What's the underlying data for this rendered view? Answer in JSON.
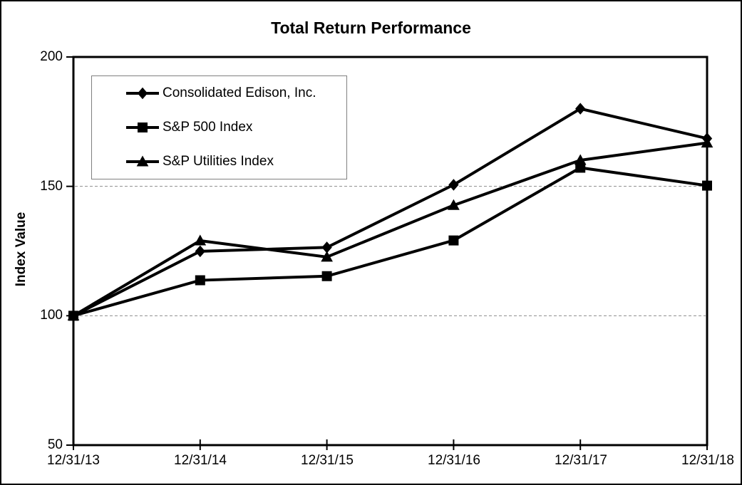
{
  "figure": {
    "background": "#ffffff",
    "outer_border_color": "#000000"
  },
  "chart_data": {
    "type": "line",
    "title": "Total Return Performance",
    "xlabel": "",
    "ylabel": "Index Value",
    "x_labels": [
      "12/31/13",
      "12/31/14",
      "12/31/15",
      "12/31/16",
      "12/31/17",
      "12/31/18"
    ],
    "y_ticks": [
      "200",
      "150",
      "100",
      "50"
    ],
    "ylim": [
      50,
      200
    ],
    "gridlines_at": [
      150,
      100
    ],
    "grid_style": "horizontal dashed",
    "legend_position": "top-left-inside",
    "line_color": "#000000",
    "gridline_color": "#8c8c8c",
    "legend_border_color": "#808080",
    "series": [
      {
        "name": "Consolidated Edison, Inc.",
        "marker": "diamond",
        "values": [
          100,
          124.9,
          126.4,
          150.6,
          180.0,
          168.5
        ]
      },
      {
        "name": "S&P 500 Index",
        "marker": "square",
        "values": [
          100,
          113.7,
          115.3,
          129.1,
          157.2,
          150.3
        ]
      },
      {
        "name": "S&P Utilities Index",
        "marker": "triangle",
        "values": [
          100,
          129.0,
          122.7,
          142.7,
          160.1,
          166.8
        ]
      }
    ]
  }
}
